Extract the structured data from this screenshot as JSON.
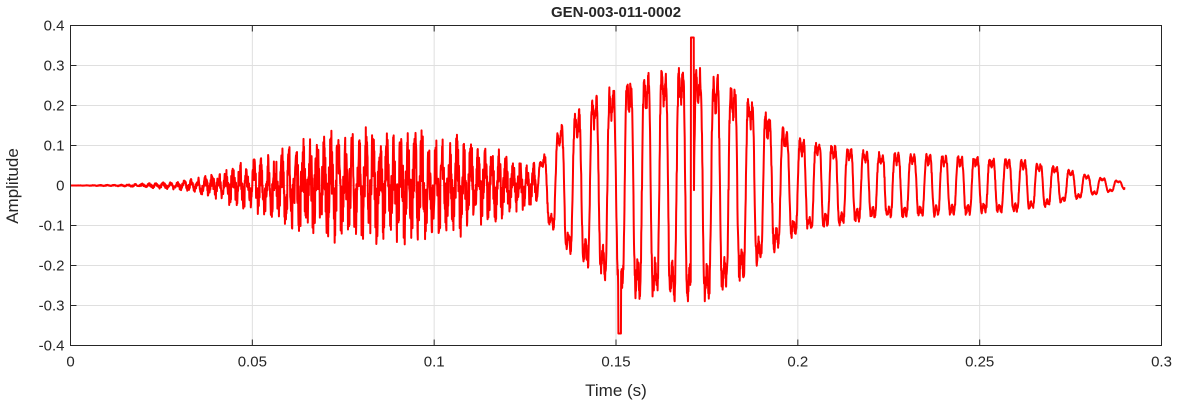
{
  "chart_data": {
    "type": "line",
    "title": "GEN-003-011-0002",
    "xlabel": "Time (s)",
    "ylabel": "Amplitude",
    "xlim": [
      0,
      0.3
    ],
    "ylim": [
      -0.4,
      0.4
    ],
    "xticks": [
      0,
      0.05,
      0.1,
      0.15,
      0.2,
      0.25,
      0.3
    ],
    "xtick_labels": [
      "0",
      "0.05",
      "0.1",
      "0.15",
      "0.2",
      "0.25",
      "0.3"
    ],
    "yticks": [
      0.4,
      0.3,
      0.2,
      0.1,
      0,
      -0.1,
      -0.2,
      -0.3,
      -0.4
    ],
    "ytick_labels": [
      "0.4",
      "0.3",
      "0.2",
      "0.1",
      "0",
      "-0.1",
      "-0.2",
      "-0.3",
      "-0.4"
    ],
    "grid": true,
    "line_color": "#ff0000",
    "series": [
      {
        "x_range": [
          0,
          0.29
        ],
        "envelope": [
          [
            0.0,
            0.0
          ],
          [
            0.015,
            0.002
          ],
          [
            0.03,
            0.01
          ],
          [
            0.04,
            0.03
          ],
          [
            0.045,
            0.05
          ],
          [
            0.055,
            0.07
          ],
          [
            0.065,
            0.12
          ],
          [
            0.08,
            0.13
          ],
          [
            0.095,
            0.13
          ],
          [
            0.11,
            0.11
          ],
          [
            0.12,
            0.07
          ],
          [
            0.128,
            0.05
          ],
          [
            0.135,
            0.18
          ],
          [
            0.145,
            0.27
          ],
          [
            0.155,
            0.33
          ],
          [
            0.17,
            0.36
          ],
          [
            0.18,
            0.32
          ],
          [
            0.19,
            0.23
          ],
          [
            0.2,
            0.14
          ],
          [
            0.22,
            0.1
          ],
          [
            0.24,
            0.09
          ],
          [
            0.26,
            0.08
          ],
          [
            0.27,
            0.06
          ],
          [
            0.28,
            0.03
          ],
          [
            0.29,
            0.01
          ]
        ],
        "peaks": {
          "max": 0.37,
          "max_t": 0.171,
          "min": -0.37,
          "min_t": 0.151
        }
      }
    ]
  }
}
